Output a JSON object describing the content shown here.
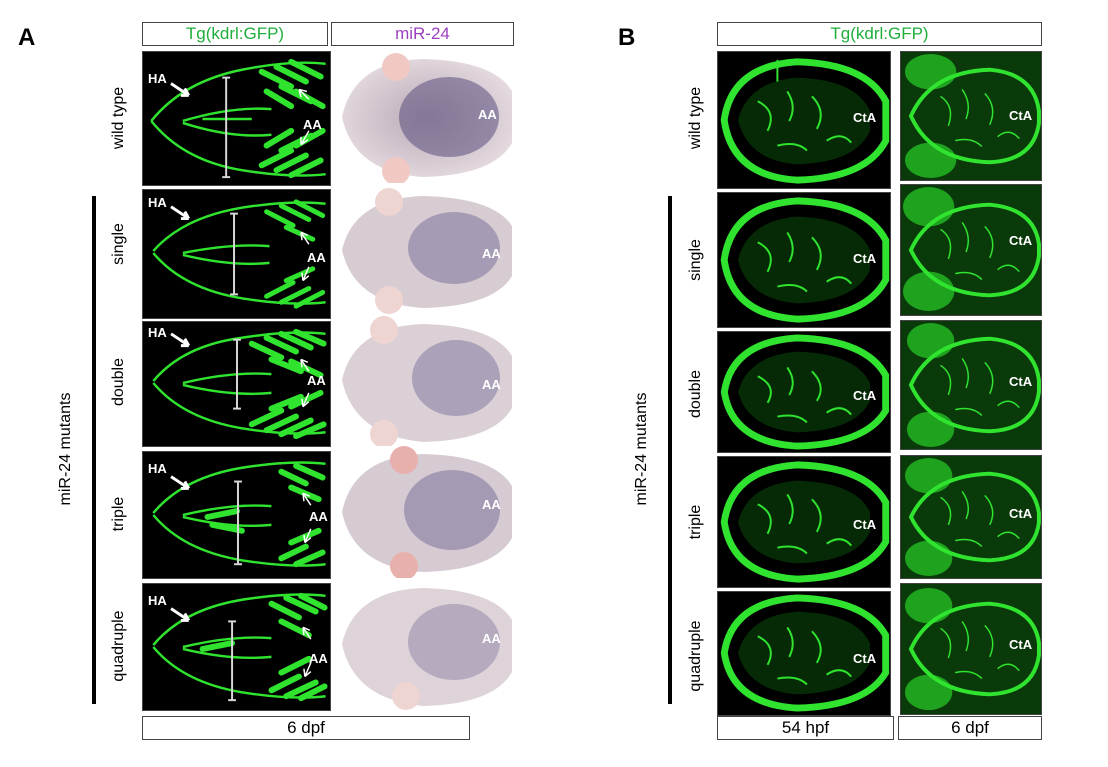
{
  "panel_a": {
    "letter": "A",
    "col_headers": [
      "Tg(kdrl:GFP)",
      "miR-24"
    ],
    "bottom_label": "6 dpf",
    "group_label": "miR-24 mutants",
    "rows": [
      "wild type",
      "single",
      "double",
      "triple",
      "quadruple"
    ],
    "ha_label": "HA",
    "aa_label": "AA"
  },
  "panel_b": {
    "letter": "B",
    "col_header": "Tg(kdrl:GFP)",
    "bottom_labels": [
      "54 hpf",
      "6 dpf"
    ],
    "group_label": "miR-24 mutants",
    "rows": [
      "wild type",
      "single",
      "double",
      "triple",
      "quadruple"
    ],
    "cta_label": "CtA"
  },
  "colors": {
    "gfp_green": "#1fae3c",
    "mir_purple": "#9b3fbf",
    "vessel_green": "#2fe32f"
  }
}
